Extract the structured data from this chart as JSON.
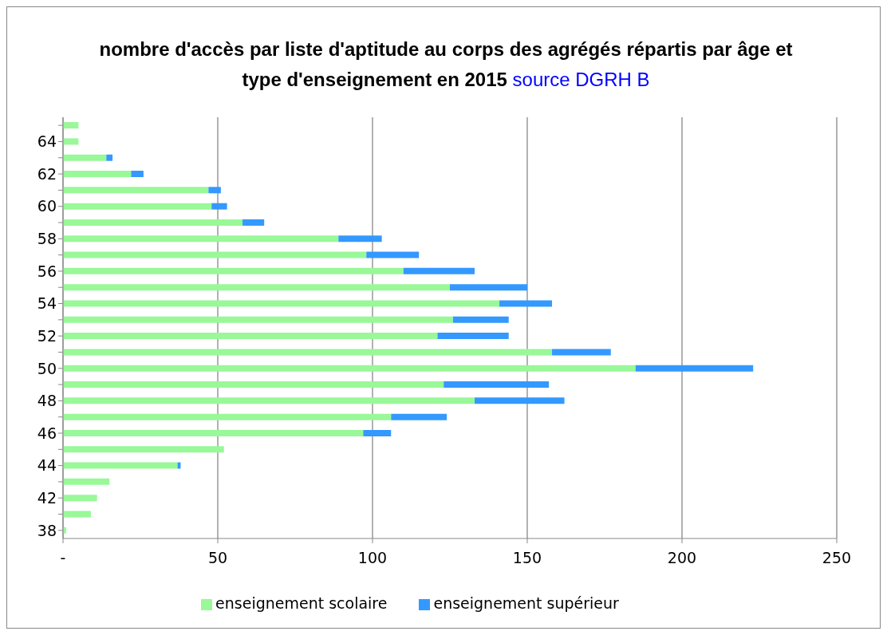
{
  "chart_data": {
    "type": "bar",
    "orientation": "horizontal",
    "stacked": true,
    "title": "nombre d'accès par liste d'aptitude au corps des agrégés répartis par âge et type d'enseignement en 2015",
    "annotations": [
      "source DGRH B"
    ],
    "categories": [
      null,
      "64",
      null,
      "62",
      null,
      "60",
      null,
      "58",
      null,
      "56",
      null,
      "54",
      null,
      "52",
      null,
      "50",
      null,
      "48",
      null,
      "46",
      null,
      "44",
      null,
      "42",
      null,
      "38"
    ],
    "series": [
      {
        "name": "enseignement scolaire",
        "color": "#99f898",
        "values": [
          5,
          5,
          14,
          22,
          47,
          48,
          58,
          89,
          98,
          110,
          125,
          141,
          126,
          121,
          158,
          185,
          123,
          133,
          106,
          97,
          52,
          37,
          15,
          11,
          9,
          1
        ]
      },
      {
        "name": "enseignement supérieur",
        "color": "#3399ff",
        "values": [
          null,
          null,
          2,
          4,
          4,
          5,
          7,
          14,
          17,
          23,
          25,
          17,
          18,
          23,
          19,
          38,
          34,
          29,
          18,
          9,
          null,
          1,
          null,
          null,
          null,
          null
        ]
      }
    ],
    "xlim": [
      0,
      250
    ],
    "xticks": [
      {
        "value": 0,
        "label": "-"
      },
      50,
      100,
      150,
      200,
      250
    ],
    "grid": "x",
    "legend": "bottom"
  }
}
